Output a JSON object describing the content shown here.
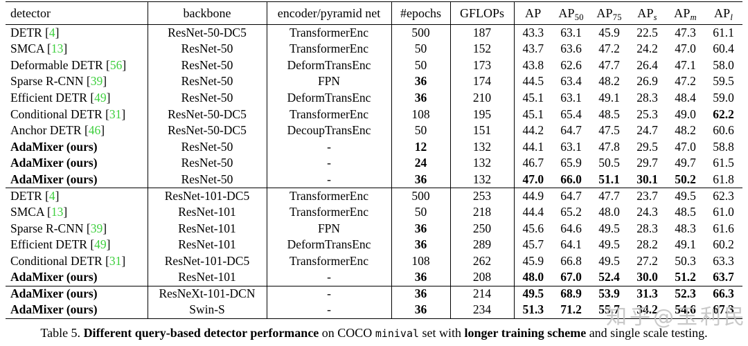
{
  "colors": {
    "citation_green": "#3ecf3e",
    "watermark_gray": "#c1c1c1"
  },
  "table": {
    "headers": {
      "detector": "detector",
      "backbone": "backbone",
      "encoder": "encoder/pyramid net",
      "epochs": "#epochs",
      "gflops": "GFLOPs",
      "ap": [
        {
          "base": "AP",
          "sub": "",
          "italic_sub": false
        },
        {
          "base": "AP",
          "sub": "50",
          "italic_sub": false
        },
        {
          "base": "AP",
          "sub": "75",
          "italic_sub": false
        },
        {
          "base": "AP",
          "sub": "s",
          "italic_sub": true
        },
        {
          "base": "AP",
          "sub": "m",
          "italic_sub": true
        },
        {
          "base": "AP",
          "sub": "l",
          "italic_sub": true
        }
      ]
    },
    "sections": [
      {
        "rows": [
          {
            "detector": "DETR",
            "cite": "4",
            "detector_bold": false,
            "backbone": "ResNet-50-DC5",
            "encoder": "TransformerEnc",
            "epochs": "500",
            "epochs_bold": false,
            "gflops": "187",
            "ap": [
              "43.3",
              "63.1",
              "45.9",
              "22.5",
              "47.3",
              "61.1"
            ],
            "ap_bold": [
              false,
              false,
              false,
              false,
              false,
              false
            ]
          },
          {
            "detector": "SMCA",
            "cite": "13",
            "detector_bold": false,
            "backbone": "ResNet-50",
            "encoder": "TransformerEnc",
            "epochs": "50",
            "epochs_bold": false,
            "gflops": "152",
            "ap": [
              "43.7",
              "63.6",
              "47.2",
              "24.2",
              "47.0",
              "60.4"
            ],
            "ap_bold": [
              false,
              false,
              false,
              false,
              false,
              false
            ]
          },
          {
            "detector": "Deformable DETR",
            "cite": "56",
            "detector_bold": false,
            "backbone": "ResNet-50",
            "encoder": "DeformTransEnc",
            "epochs": "50",
            "epochs_bold": false,
            "gflops": "173",
            "ap": [
              "43.8",
              "62.6",
              "47.7",
              "26.4",
              "47.1",
              "58.0"
            ],
            "ap_bold": [
              false,
              false,
              false,
              false,
              false,
              false
            ]
          },
          {
            "detector": "Sparse R-CNN",
            "cite": "39",
            "detector_bold": false,
            "backbone": "ResNet-50",
            "encoder": "FPN",
            "epochs": "36",
            "epochs_bold": true,
            "gflops": "174",
            "ap": [
              "44.5",
              "63.4",
              "48.2",
              "26.9",
              "47.2",
              "59.5"
            ],
            "ap_bold": [
              false,
              false,
              false,
              false,
              false,
              false
            ]
          },
          {
            "detector": "Efficient DETR",
            "cite": "49",
            "detector_bold": false,
            "backbone": "ResNet-50",
            "encoder": "DeformTransEnc",
            "epochs": "36",
            "epochs_bold": true,
            "gflops": "210",
            "ap": [
              "45.1",
              "63.1",
              "49.1",
              "28.3",
              "48.4",
              "59.0"
            ],
            "ap_bold": [
              false,
              false,
              false,
              false,
              false,
              false
            ]
          },
          {
            "detector": "Conditional DETR",
            "cite": "31",
            "detector_bold": false,
            "backbone": "ResNet-50-DC5",
            "encoder": "TransformerEnc",
            "epochs": "108",
            "epochs_bold": false,
            "gflops": "195",
            "ap": [
              "45.1",
              "65.4",
              "48.5",
              "25.3",
              "49.0",
              "62.2"
            ],
            "ap_bold": [
              false,
              false,
              false,
              false,
              false,
              true
            ]
          },
          {
            "detector": "Anchor DETR",
            "cite": "46",
            "detector_bold": false,
            "backbone": "ResNet-50-DC5",
            "encoder": "DecoupTransEnc",
            "epochs": "50",
            "epochs_bold": false,
            "gflops": "151",
            "ap": [
              "44.2",
              "64.7",
              "47.5",
              "24.7",
              "48.2",
              "60.6"
            ],
            "ap_bold": [
              false,
              false,
              false,
              false,
              false,
              false
            ]
          },
          {
            "detector": "AdaMixer (ours)",
            "cite": null,
            "detector_bold": true,
            "backbone": "ResNet-50",
            "encoder": "-",
            "epochs": "12",
            "epochs_bold": true,
            "gflops": "132",
            "ap": [
              "44.1",
              "63.1",
              "47.8",
              "29.5",
              "47.0",
              "58.8"
            ],
            "ap_bold": [
              false,
              false,
              false,
              false,
              false,
              false
            ]
          },
          {
            "detector": "AdaMixer (ours)",
            "cite": null,
            "detector_bold": true,
            "backbone": "ResNet-50",
            "encoder": "-",
            "epochs": "24",
            "epochs_bold": true,
            "gflops": "132",
            "ap": [
              "46.7",
              "65.9",
              "50.5",
              "29.7",
              "49.7",
              "61.5"
            ],
            "ap_bold": [
              false,
              false,
              false,
              false,
              false,
              false
            ]
          },
          {
            "detector": "AdaMixer (ours)",
            "cite": null,
            "detector_bold": true,
            "backbone": "ResNet-50",
            "encoder": "-",
            "epochs": "36",
            "epochs_bold": true,
            "gflops": "132",
            "ap": [
              "47.0",
              "66.0",
              "51.1",
              "30.1",
              "50.2",
              "61.8"
            ],
            "ap_bold": [
              true,
              true,
              true,
              true,
              true,
              false
            ]
          }
        ]
      },
      {
        "rows": [
          {
            "detector": "DETR",
            "cite": "4",
            "detector_bold": false,
            "backbone": "ResNet-101-DC5",
            "encoder": "TransformerEnc",
            "epochs": "500",
            "epochs_bold": false,
            "gflops": "253",
            "ap": [
              "44.9",
              "64.7",
              "47.7",
              "23.7",
              "49.5",
              "62.3"
            ],
            "ap_bold": [
              false,
              false,
              false,
              false,
              false,
              false
            ]
          },
          {
            "detector": "SMCA",
            "cite": "13",
            "detector_bold": false,
            "backbone": "ResNet-101",
            "encoder": "TransformerEnc",
            "epochs": "50",
            "epochs_bold": false,
            "gflops": "218",
            "ap": [
              "44.4",
              "65.2",
              "48.0",
              "24.3",
              "48.5",
              "61.0"
            ],
            "ap_bold": [
              false,
              false,
              false,
              false,
              false,
              false
            ]
          },
          {
            "detector": "Sparse R-CNN",
            "cite": "39",
            "detector_bold": false,
            "backbone": "ResNet-101",
            "encoder": "FPN",
            "epochs": "36",
            "epochs_bold": true,
            "gflops": "250",
            "ap": [
              "45.6",
              "64.6",
              "49.5",
              "28.3",
              "48.3",
              "61.6"
            ],
            "ap_bold": [
              false,
              false,
              false,
              false,
              false,
              false
            ]
          },
          {
            "detector": "Efficient DETR",
            "cite": "49",
            "detector_bold": false,
            "backbone": "ResNet-101",
            "encoder": "DeformTransEnc",
            "epochs": "36",
            "epochs_bold": true,
            "gflops": "289",
            "ap": [
              "45.7",
              "64.1",
              "49.5",
              "28.2",
              "49.1",
              "60.2"
            ],
            "ap_bold": [
              false,
              false,
              false,
              false,
              false,
              false
            ]
          },
          {
            "detector": "Conditional DETR",
            "cite": "31",
            "detector_bold": false,
            "backbone": "ResNet-101-DC5",
            "encoder": "TransformerEnc",
            "epochs": "108",
            "epochs_bold": false,
            "gflops": "262",
            "ap": [
              "45.9",
              "66.8",
              "49.5",
              "27.2",
              "50.3",
              "63.3"
            ],
            "ap_bold": [
              false,
              false,
              false,
              false,
              false,
              false
            ]
          },
          {
            "detector": "AdaMixer (ours)",
            "cite": null,
            "detector_bold": true,
            "backbone": "ResNet-101",
            "encoder": "-",
            "epochs": "36",
            "epochs_bold": true,
            "gflops": "208",
            "ap": [
              "48.0",
              "67.0",
              "52.4",
              "30.0",
              "51.2",
              "63.7"
            ],
            "ap_bold": [
              true,
              true,
              true,
              true,
              true,
              true
            ]
          }
        ]
      },
      {
        "rows": [
          {
            "detector": "AdaMixer (ours)",
            "cite": null,
            "detector_bold": true,
            "backbone": "ResNeXt-101-DCN",
            "encoder": "-",
            "epochs": "36",
            "epochs_bold": true,
            "gflops": "214",
            "ap": [
              "49.5",
              "68.9",
              "53.9",
              "31.3",
              "52.3",
              "66.3"
            ],
            "ap_bold": [
              true,
              true,
              true,
              true,
              true,
              true
            ]
          },
          {
            "detector": "AdaMixer (ours)",
            "cite": null,
            "detector_bold": true,
            "backbone": "Swin-S",
            "encoder": "-",
            "epochs": "36",
            "epochs_bold": true,
            "gflops": "234",
            "ap": [
              "51.3",
              "71.2",
              "55.7",
              "34.2",
              "54.6",
              "67.3"
            ],
            "ap_bold": [
              true,
              true,
              true,
              true,
              true,
              true
            ]
          }
        ]
      }
    ]
  },
  "caption": {
    "segments": [
      {
        "text": "Table 5. ",
        "bold": false,
        "mono": false
      },
      {
        "text": "Different query-based detector performance",
        "bold": true,
        "mono": false
      },
      {
        "text": " on COCO ",
        "bold": false,
        "mono": false
      },
      {
        "text": "minival",
        "bold": false,
        "mono": true
      },
      {
        "text": " set with ",
        "bold": false,
        "mono": false
      },
      {
        "text": "longer training scheme",
        "bold": true,
        "mono": false
      },
      {
        "text": " and single scale testing.",
        "bold": false,
        "mono": false
      }
    ]
  },
  "watermark": {
    "text": "知乎@玉利民"
  }
}
